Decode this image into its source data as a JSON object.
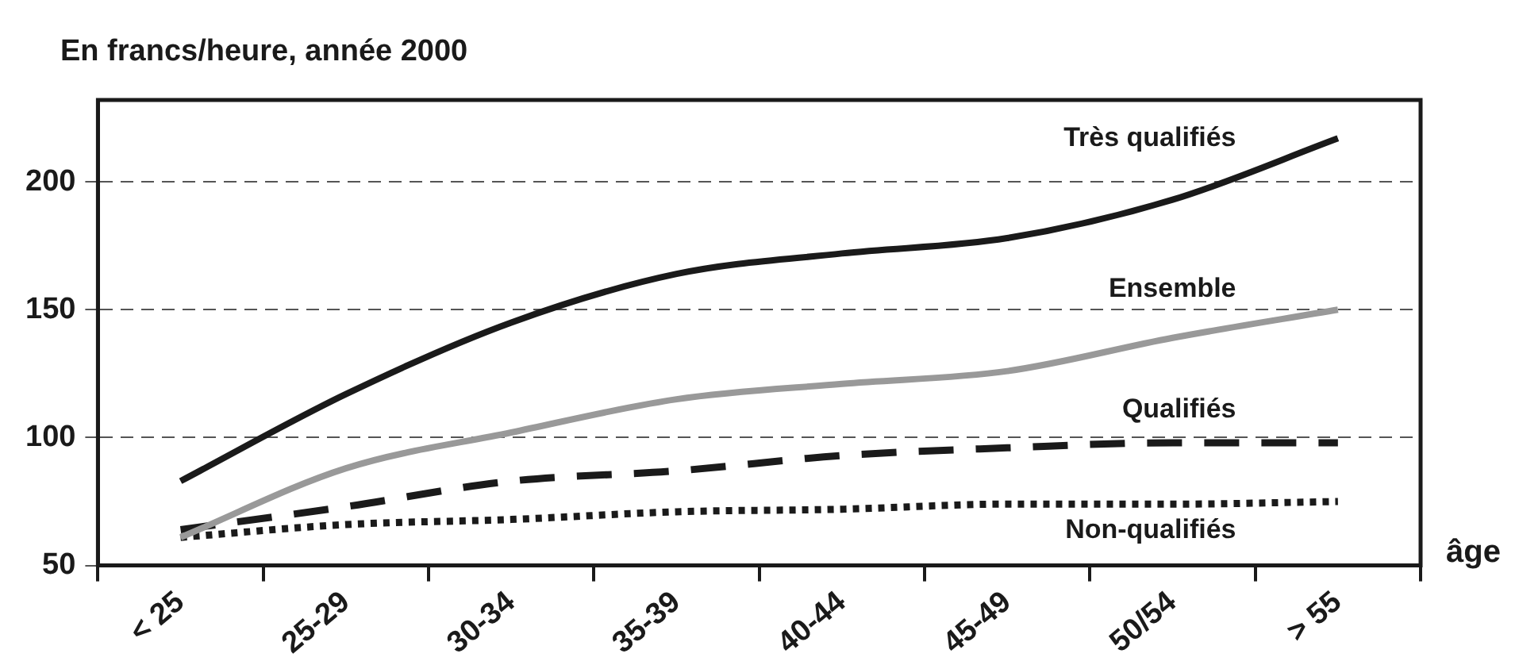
{
  "chart_data": {
    "type": "line",
    "title": "En francs/heure, année 2000",
    "xlabel": "âge",
    "categories": [
      "< 25",
      "25-29",
      "30-34",
      "35-39",
      "40-44",
      "45-49",
      "50/54",
      "> 55"
    ],
    "series": [
      {
        "name": "Très qualifiés",
        "color": "#1a1a1a",
        "line_style": "solid",
        "values": [
          83,
          117,
          145,
          164,
          172,
          178,
          193,
          217
        ]
      },
      {
        "name": "Ensemble",
        "color": "#999999",
        "line_style": "solid",
        "values": [
          61,
          88,
          102,
          115,
          121,
          126,
          139,
          150
        ]
      },
      {
        "name": "Qualifiés",
        "color": "#1a1a1a",
        "line_style": "dashed",
        "values": [
          64,
          73,
          83,
          87,
          93,
          96,
          98,
          98
        ]
      },
      {
        "name": "Non-qualifiés",
        "color": "#1a1a1a",
        "line_style": "dotted",
        "values": [
          61,
          66,
          68,
          71,
          72,
          74,
          74,
          75
        ]
      }
    ],
    "ylim": [
      50,
      232
    ],
    "yticks": [
      50,
      100,
      150,
      200
    ],
    "grid": "y",
    "legend": false,
    "marker": "none"
  }
}
